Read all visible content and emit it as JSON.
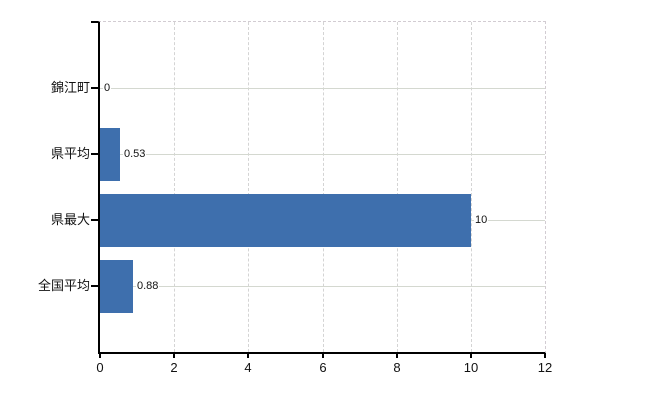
{
  "chart_data": {
    "type": "bar",
    "orientation": "horizontal",
    "title": "",
    "xlabel": "",
    "ylabel": "",
    "categories": [
      "錦江町",
      "県平均",
      "県最大",
      "全国平均"
    ],
    "values": [
      0,
      0.53,
      10,
      0.88
    ],
    "value_labels": [
      "0",
      "0.53",
      "10",
      "0.88"
    ],
    "xlim": [
      0,
      12
    ],
    "xticks": [
      0,
      2,
      4,
      6,
      8,
      10,
      12
    ],
    "grid": true,
    "legend_position": "none",
    "bar_color": "#3e6fad",
    "grid_color": "#d4d4d4",
    "axis_color": "#000000",
    "text_color": "#111111",
    "background_color": "#ffffff"
  }
}
